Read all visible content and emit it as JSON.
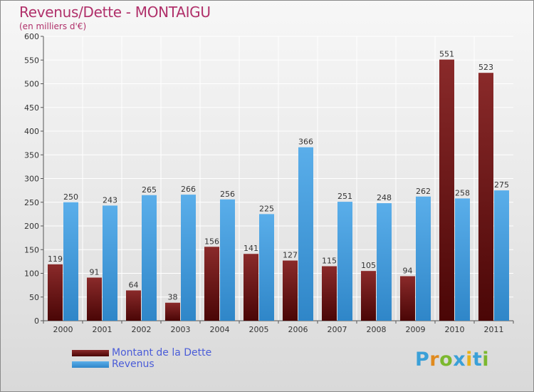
{
  "header": {
    "title": "Revenus/Dette - MONTAIGU",
    "subtitle": "(en milliers d'€)"
  },
  "logo": {
    "text": "Proxiti",
    "letters": [
      "P",
      "r",
      "o",
      "x",
      "i",
      "t",
      "i"
    ],
    "colors": [
      "#3aa0d8",
      "#e08a1e",
      "#7cb82f",
      "#3aa0d8",
      "#e8b21a",
      "#3aa0d8",
      "#7cb82f"
    ]
  },
  "colors": {
    "dette": "#6e1414",
    "revenus": "#4aa2e0",
    "axis": "#555555",
    "grid": "#ffffff",
    "tick_text": "#333333"
  },
  "chart_data": {
    "type": "bar",
    "title": "Revenus/Dette - MONTAIGU",
    "ylabel": "(en milliers d'€)",
    "xlabel": "",
    "ylim": [
      0,
      600
    ],
    "yticks": [
      0,
      50,
      100,
      150,
      200,
      250,
      300,
      350,
      400,
      450,
      500,
      550,
      600
    ],
    "grid": true,
    "legend_position": "bottom-left",
    "categories": [
      "2000",
      "2001",
      "2002",
      "2003",
      "2004",
      "2005",
      "2006",
      "2007",
      "2008",
      "2009",
      "2010",
      "2011"
    ],
    "series": [
      {
        "name": "Montant de la Dette",
        "values": [
          119,
          91,
          64,
          38,
          156,
          141,
          127,
          115,
          105,
          94,
          551,
          523
        ]
      },
      {
        "name": "Revenus",
        "values": [
          250,
          243,
          265,
          266,
          256,
          225,
          366,
          251,
          248,
          262,
          258,
          275
        ]
      }
    ]
  }
}
